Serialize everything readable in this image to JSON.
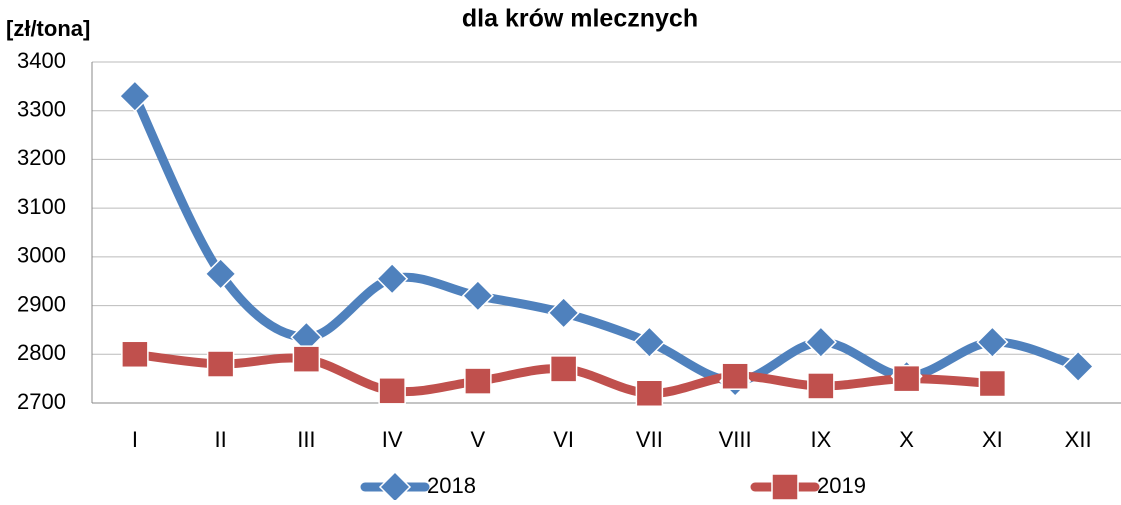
{
  "chart_data": {
    "type": "line",
    "title": "dla krów mlecznych",
    "y_label": "[zł/tona]",
    "categories": [
      "I",
      "II",
      "III",
      "IV",
      "V",
      "VI",
      "VII",
      "VIII",
      "IX",
      "X",
      "XI",
      "XII"
    ],
    "series": [
      {
        "name": "2018",
        "color": "#4f81bd",
        "marker": "diamond",
        "values": [
          3330,
          2965,
          2835,
          2955,
          2920,
          2885,
          2825,
          2745,
          2825,
          2755,
          2825,
          2775
        ]
      },
      {
        "name": "2019",
        "color": "#c0504d",
        "marker": "square",
        "values": [
          2800,
          2780,
          2790,
          2725,
          2745,
          2770,
          2720,
          2755,
          2735,
          2750,
          2740,
          null
        ]
      }
    ],
    "ylim": [
      2700,
      3400
    ],
    "yticks": [
      2700,
      2800,
      2900,
      3000,
      3100,
      3200,
      3300,
      3400
    ],
    "grid": true,
    "legend": "bottom"
  }
}
